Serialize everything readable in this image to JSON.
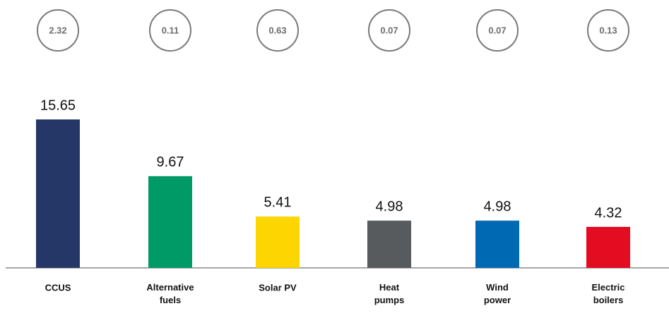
{
  "chart_data": {
    "type": "bar",
    "categories": [
      "CCUS",
      "Alternative\nfuels",
      "Solar PV",
      "Heat\npumps",
      "Wind\npower",
      "Electric\nboilers"
    ],
    "values": [
      15.65,
      9.67,
      5.41,
      4.98,
      4.98,
      4.32
    ],
    "circle_values": [
      2.32,
      0.11,
      0.63,
      0.07,
      0.07,
      0.13
    ],
    "colors": [
      "#253766",
      "#009a66",
      "#fdd500",
      "#575b5e",
      "#0069b4",
      "#e30c20"
    ]
  }
}
